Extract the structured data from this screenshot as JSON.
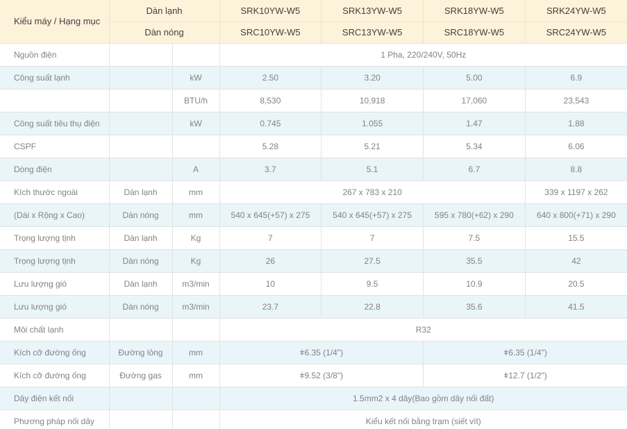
{
  "table": {
    "colors": {
      "header_bg": "#fcf3da",
      "header_border": "#ece3cc",
      "header_text": "#3f3f3f",
      "border": "#e2e2e2",
      "shade_bg": "#e9f5f9",
      "body_text": "#828282"
    },
    "header": {
      "corner_label": "Kiểu máy / Hạng mục",
      "rows": [
        {
          "group_label": "Dàn lạnh",
          "models": [
            "SRK10YW-W5",
            "SRK13YW-W5",
            "SRK18YW-W5",
            "SRK24YW-W5"
          ]
        },
        {
          "group_label": "Dàn nóng",
          "models": [
            "SRC10YW-W5",
            "SRC13YW-W5",
            "SRC18YW-W5",
            "SRC24YW-W5"
          ]
        }
      ]
    },
    "rows": [
      {
        "label": "Nguồn điện",
        "sub": "",
        "unit": "",
        "shade": false,
        "values": [
          {
            "text": "1 Pha, 220/240V, 50Hz",
            "span": 4
          }
        ]
      },
      {
        "label": "Công suất lạnh",
        "sub": "",
        "unit": "kW",
        "shade": true,
        "values": [
          "2.50",
          "3.20",
          "5.00",
          "6.9"
        ]
      },
      {
        "label": "",
        "sub": "",
        "unit": "BTU/h",
        "shade": false,
        "values": [
          "8,530",
          "10,918",
          "17,060",
          "23,543"
        ]
      },
      {
        "label": "Công suất tiêu thụ điện",
        "sub": "",
        "unit": "kW",
        "shade": true,
        "values": [
          "0.745",
          "1.055",
          "1.47",
          "1.88"
        ]
      },
      {
        "label": "CSPF",
        "sub": "",
        "unit": "",
        "shade": false,
        "values": [
          "5.28",
          "5.21",
          "5.34",
          "6.06"
        ]
      },
      {
        "label": "Dòng điện",
        "sub": "",
        "unit": "A",
        "shade": true,
        "values": [
          "3.7",
          "5.1",
          "6.7",
          "8.8"
        ]
      },
      {
        "label": "Kích thước ngoài",
        "sub": "Dàn lạnh",
        "unit": "mm",
        "shade": false,
        "values": [
          {
            "text": "267 x 783 x 210",
            "span": 3
          },
          {
            "text": "339 x 1197 x 262",
            "span": 1
          }
        ]
      },
      {
        "label": "(Dài x Rộng x Cao)",
        "sub": "Dàn nóng",
        "unit": "mm",
        "shade": true,
        "values": [
          "540 x 645(+57) x 275",
          "540 x 645(+57) x 275",
          "595 x 780(+62) x 290",
          "640 x 800(+71) x 290"
        ]
      },
      {
        "label": "Trọng lượng tịnh",
        "sub": "Dàn lạnh",
        "unit": "Kg",
        "shade": false,
        "values": [
          "7",
          "7",
          "7.5",
          "15.5"
        ]
      },
      {
        "label": "Trọng lượng tịnh",
        "sub": "Dàn nóng",
        "unit": "Kg",
        "shade": true,
        "values": [
          "26",
          "27.5",
          "35.5",
          "42"
        ]
      },
      {
        "label": "Lưu lượng gió",
        "sub": "Dàn lạnh",
        "unit": "m3/min",
        "shade": false,
        "values": [
          "10",
          "9.5",
          "10.9",
          "20.5"
        ]
      },
      {
        "label": "Lưu lượng gió",
        "sub": "Dàn nóng",
        "unit": "m3/min",
        "shade": true,
        "values": [
          "23.7",
          "22.8",
          "35.6",
          "41.5"
        ]
      },
      {
        "label": "Môi chất lạnh",
        "sub": "",
        "unit": "",
        "shade": false,
        "values": [
          {
            "text": "R32",
            "span": 4
          }
        ]
      },
      {
        "label": "Kích cỡ đường ống",
        "sub": "Đường lỏng",
        "unit": "mm",
        "shade": true,
        "values": [
          {
            "text": "ǂ6.35 (1/4\")",
            "span": 2
          },
          {
            "text": "ǂ6.35 (1/4\")",
            "span": 2
          }
        ]
      },
      {
        "label": "Kích cỡ đường ống",
        "sub": "Đường gas",
        "unit": "mm",
        "shade": false,
        "values": [
          {
            "text": "ǂ9.52 (3/8\")",
            "span": 2
          },
          {
            "text": "ǂ12.7 (1/2\")",
            "span": 2
          }
        ]
      },
      {
        "label": "Dây điện kết nối",
        "sub": "",
        "unit": "",
        "shade": true,
        "values": [
          {
            "text": "1.5mm2 x 4 dây(Bao gồm dây nối đất)",
            "span": 4
          }
        ]
      },
      {
        "label": "Phương pháp nối dây",
        "sub": "",
        "unit": "",
        "shade": false,
        "values": [
          {
            "text": "Kiểu kết nối bằng trạm (siết vít)",
            "span": 4
          }
        ]
      }
    ]
  }
}
